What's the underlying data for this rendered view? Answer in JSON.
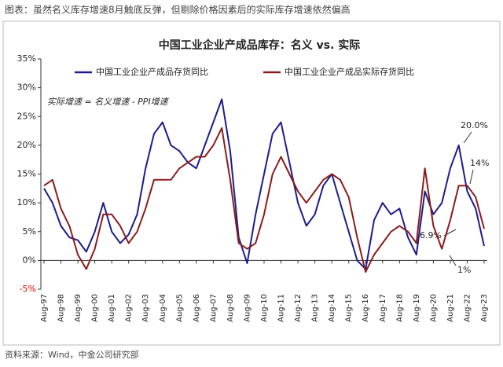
{
  "header": {
    "title": "图表：虽然名义库存增速8月触底反弹，但剔除价格因素后的实际库存增速依然偏高",
    "source": "资料来源：Wind，中金公司研究部"
  },
  "chart_data": {
    "type": "line",
    "title": "中国工业企业产成品库存：名义 vs. 实际",
    "annotations": [
      "实际增速 = 名义增速 - PPI增速",
      "20.0%",
      "14%",
      "6.9%",
      "1%"
    ],
    "categories": [
      "Aug-97",
      null,
      "Aug-98",
      null,
      "Aug-99",
      null,
      "Aug-00",
      null,
      "Aug-01",
      null,
      "Aug-02",
      null,
      "Aug-03",
      null,
      "Aug-04",
      null,
      "Aug-05",
      null,
      "Aug-06",
      null,
      "Aug-07",
      null,
      "Aug-08",
      null,
      "Aug-09",
      null,
      "Aug-10",
      null,
      "Aug-11",
      null,
      "Aug-12",
      null,
      "Aug-13",
      null,
      "Aug-14",
      null,
      "Aug-15",
      null,
      "Aug-16",
      null,
      "Aug-17",
      null,
      "Aug-18",
      null,
      "Aug-19",
      null,
      "Aug-20",
      null,
      "Aug-21",
      null,
      "Aug-22",
      null,
      "Aug-23"
    ],
    "series": [
      {
        "name": "中国工业企业产成品存货同比",
        "color": "#1c1c8c",
        "values": [
          12.5,
          10,
          6,
          4,
          3.5,
          1.5,
          5,
          10,
          5,
          3,
          4.5,
          8,
          16,
          22,
          24,
          20,
          19,
          17,
          16,
          20,
          24,
          28,
          19,
          4,
          -0.5,
          8,
          15,
          22,
          24,
          17,
          10,
          6,
          8,
          13,
          15,
          10,
          5,
          0,
          -1.5,
          7,
          10,
          8,
          9,
          4,
          1,
          12,
          8,
          10,
          16,
          20,
          12,
          9,
          2.5
        ]
      },
      {
        "name": "中国工业企业产成品实际存货同比",
        "color": "#8b1c1c",
        "values": [
          13,
          14,
          9,
          6,
          1,
          -1.5,
          2,
          8,
          8,
          6,
          3,
          5,
          9,
          14,
          14,
          14,
          16,
          17,
          18,
          18,
          20,
          23,
          14,
          3,
          2,
          3,
          8,
          15,
          18,
          15,
          12,
          10,
          12,
          14,
          15,
          14,
          11,
          4,
          -2,
          1,
          3,
          5,
          6,
          5,
          3,
          16,
          6,
          2,
          7,
          13,
          13,
          11,
          5.5
        ]
      }
    ],
    "ylim": [
      -5,
      35
    ],
    "yticks": [
      {
        "value": -5,
        "label": "-5%"
      },
      {
        "value": 0,
        "label": "0%"
      },
      {
        "value": 5,
        "label": "5%"
      },
      {
        "value": 10,
        "label": "10%"
      },
      {
        "value": 15,
        "label": "15%"
      },
      {
        "value": 20,
        "label": "20%"
      },
      {
        "value": 25,
        "label": "25%"
      },
      {
        "value": 30,
        "label": "30%"
      },
      {
        "value": 35,
        "label": "35%"
      }
    ],
    "grid": false
  }
}
